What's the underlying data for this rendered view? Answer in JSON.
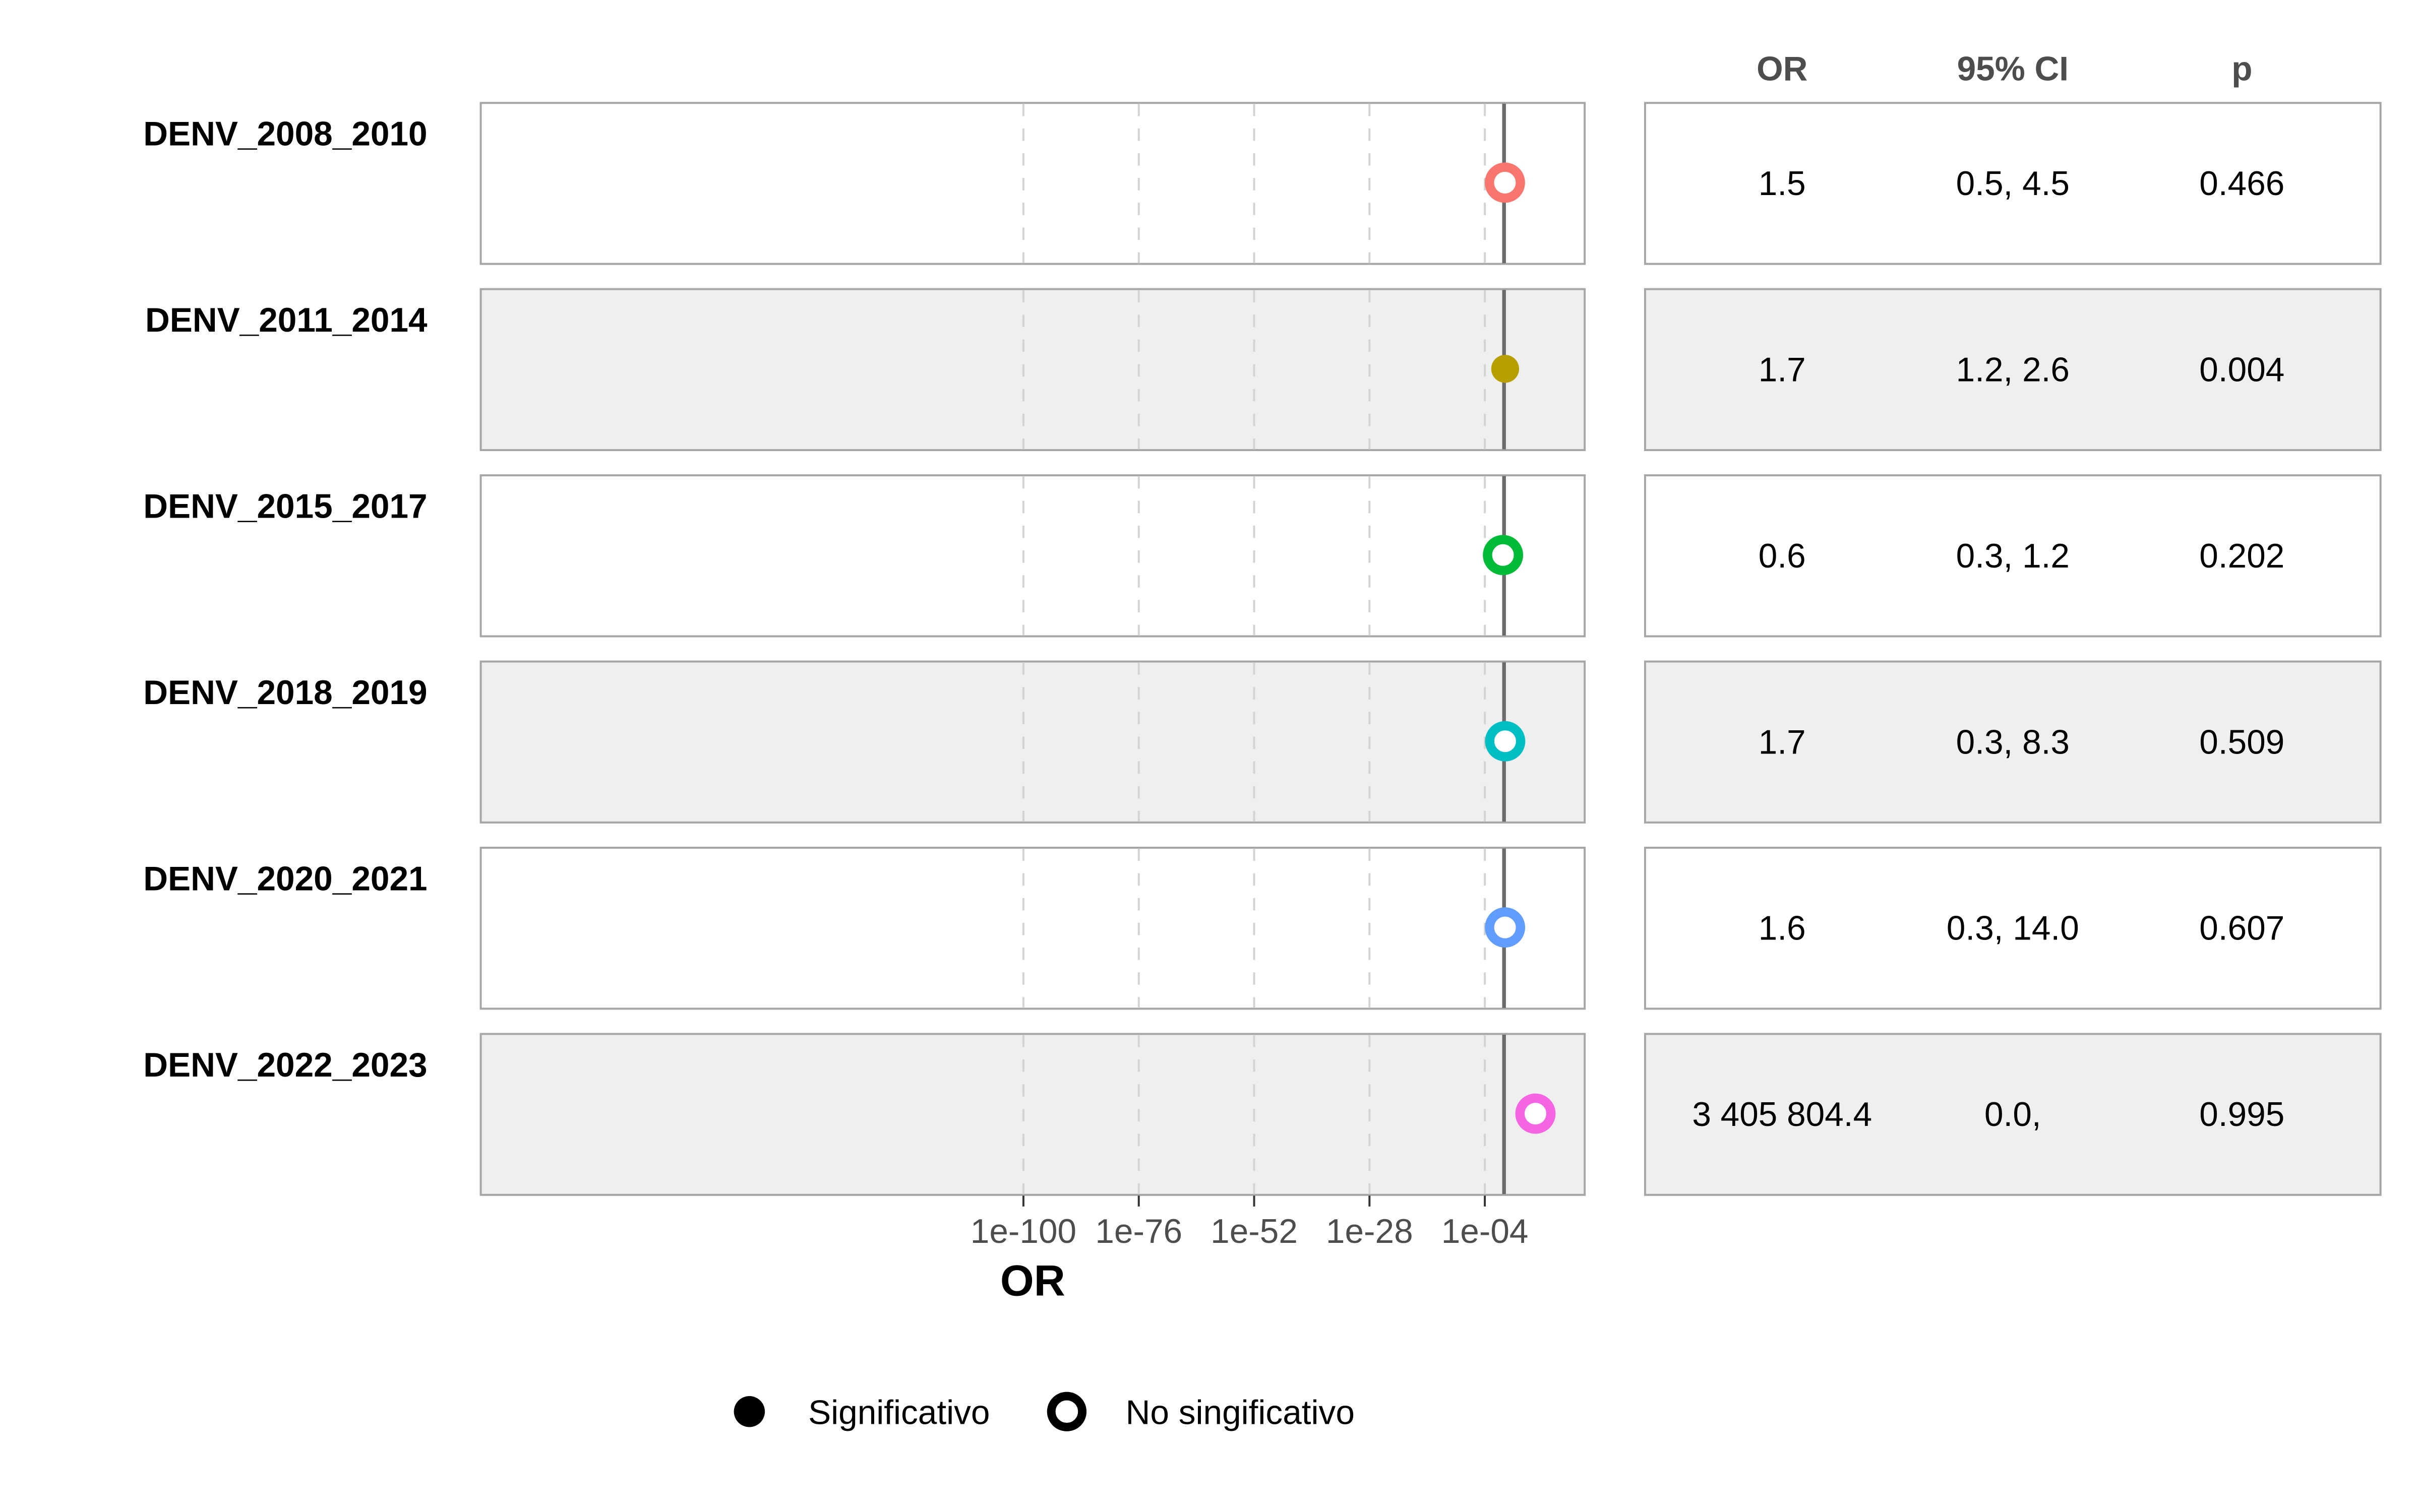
{
  "chart_data": {
    "type": "forest",
    "xlabel": "OR",
    "x_scale": "log10",
    "reference_line": 1,
    "xlim_log10": [
      -150,
      2
    ],
    "ticks": [
      {
        "label": "1e-100",
        "log10": -100
      },
      {
        "label": "1e-76",
        "log10": -76
      },
      {
        "label": "1e-52",
        "log10": -52
      },
      {
        "label": "1e-28",
        "log10": -28
      },
      {
        "label": "1e-04",
        "log10": -4
      }
    ],
    "table_headers": {
      "or": "OR",
      "ci": "95% CI",
      "p": "p"
    },
    "rows": [
      {
        "label": "DENV_2008_2010",
        "or_log10": 0.18,
        "or_text": "1.5",
        "ci_text": "0.5, 4.5",
        "p_text": "0.466",
        "significant": false,
        "color": "#F8766D"
      },
      {
        "label": "DENV_2011_2014",
        "or_log10": 0.23,
        "or_text": "1.7",
        "ci_text": "1.2, 2.6",
        "p_text": "0.004",
        "significant": true,
        "color": "#B79F00"
      },
      {
        "label": "DENV_2015_2017",
        "or_log10": -0.22,
        "or_text": "0.6",
        "ci_text": "0.3, 1.2",
        "p_text": "0.202",
        "significant": false,
        "color": "#00BA38"
      },
      {
        "label": "DENV_2018_2019",
        "or_log10": 0.23,
        "or_text": "1.7",
        "ci_text": "0.3, 8.3",
        "p_text": "0.509",
        "significant": false,
        "color": "#00BFC4"
      },
      {
        "label": "DENV_2020_2021",
        "or_log10": 0.2,
        "or_text": "1.6",
        "ci_text": "0.3, 14.0",
        "p_text": "0.607",
        "significant": false,
        "color": "#619CFF"
      },
      {
        "label": "DENV_2022_2023",
        "or_log10": 6.53,
        "or_text": "3 405 804.4",
        "ci_text": "0.0,",
        "p_text": "0.995",
        "significant": false,
        "color": "#F564E3"
      }
    ],
    "legend": [
      {
        "label": "Significativo",
        "shape": "filled-circle"
      },
      {
        "label": "No singificativo",
        "shape": "open-circle"
      }
    ]
  }
}
